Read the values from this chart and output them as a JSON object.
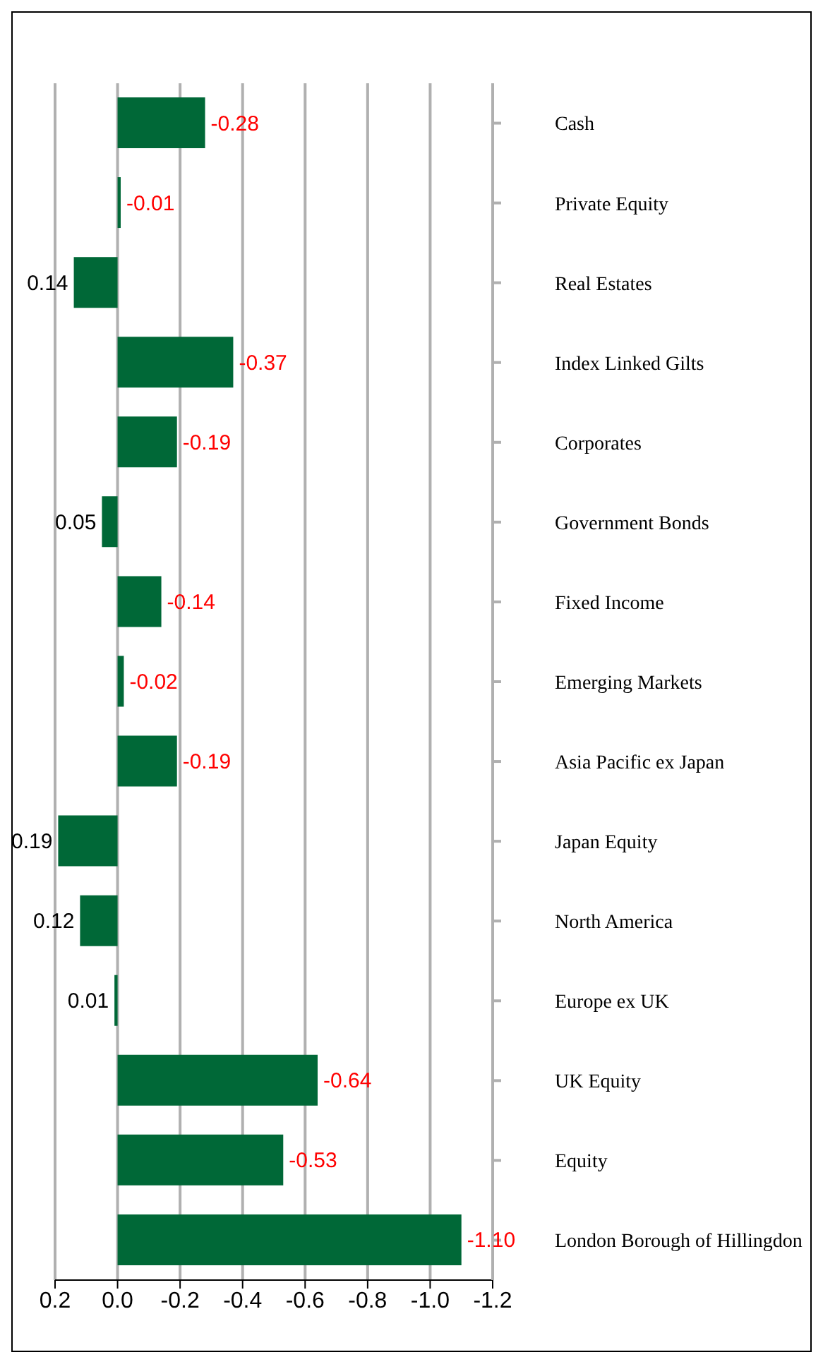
{
  "chart_data": {
    "type": "bar",
    "orientation": "horizontal",
    "categories": [
      "Cash",
      "Private Equity",
      "Real Estates",
      "Index Linked Gilts",
      "Corporates",
      "Government Bonds",
      "Fixed Income",
      "Emerging Markets",
      "Asia Pacific ex Japan",
      "Japan Equity",
      "North America",
      "Europe ex UK",
      "UK Equity",
      "Equity",
      "London Borough of Hillingdon"
    ],
    "values": [
      -0.28,
      -0.01,
      0.14,
      -0.37,
      -0.19,
      0.05,
      -0.14,
      -0.02,
      -0.19,
      0.19,
      0.12,
      0.01,
      -0.64,
      -0.53,
      -1.1
    ],
    "value_labels": [
      "-0.28",
      "-0.01",
      "0.14",
      "-0.37",
      "-0.19",
      "0.05",
      "-0.14",
      "-0.02",
      "-0.19",
      "0.19",
      "0.12",
      "0.01",
      "-0.64",
      "-0.53",
      "-1.10"
    ],
    "color": "#006837",
    "xlim": [
      0.2,
      -1.2
    ],
    "xticks": [
      0.2,
      {
        "value": 0,
        "label": "0.0"
      },
      -0.2,
      -0.4,
      -0.6,
      -0.8,
      {
        "value": -1,
        "label": "-1.0"
      },
      -1.2
    ],
    "grid": "x",
    "legend": false
  }
}
